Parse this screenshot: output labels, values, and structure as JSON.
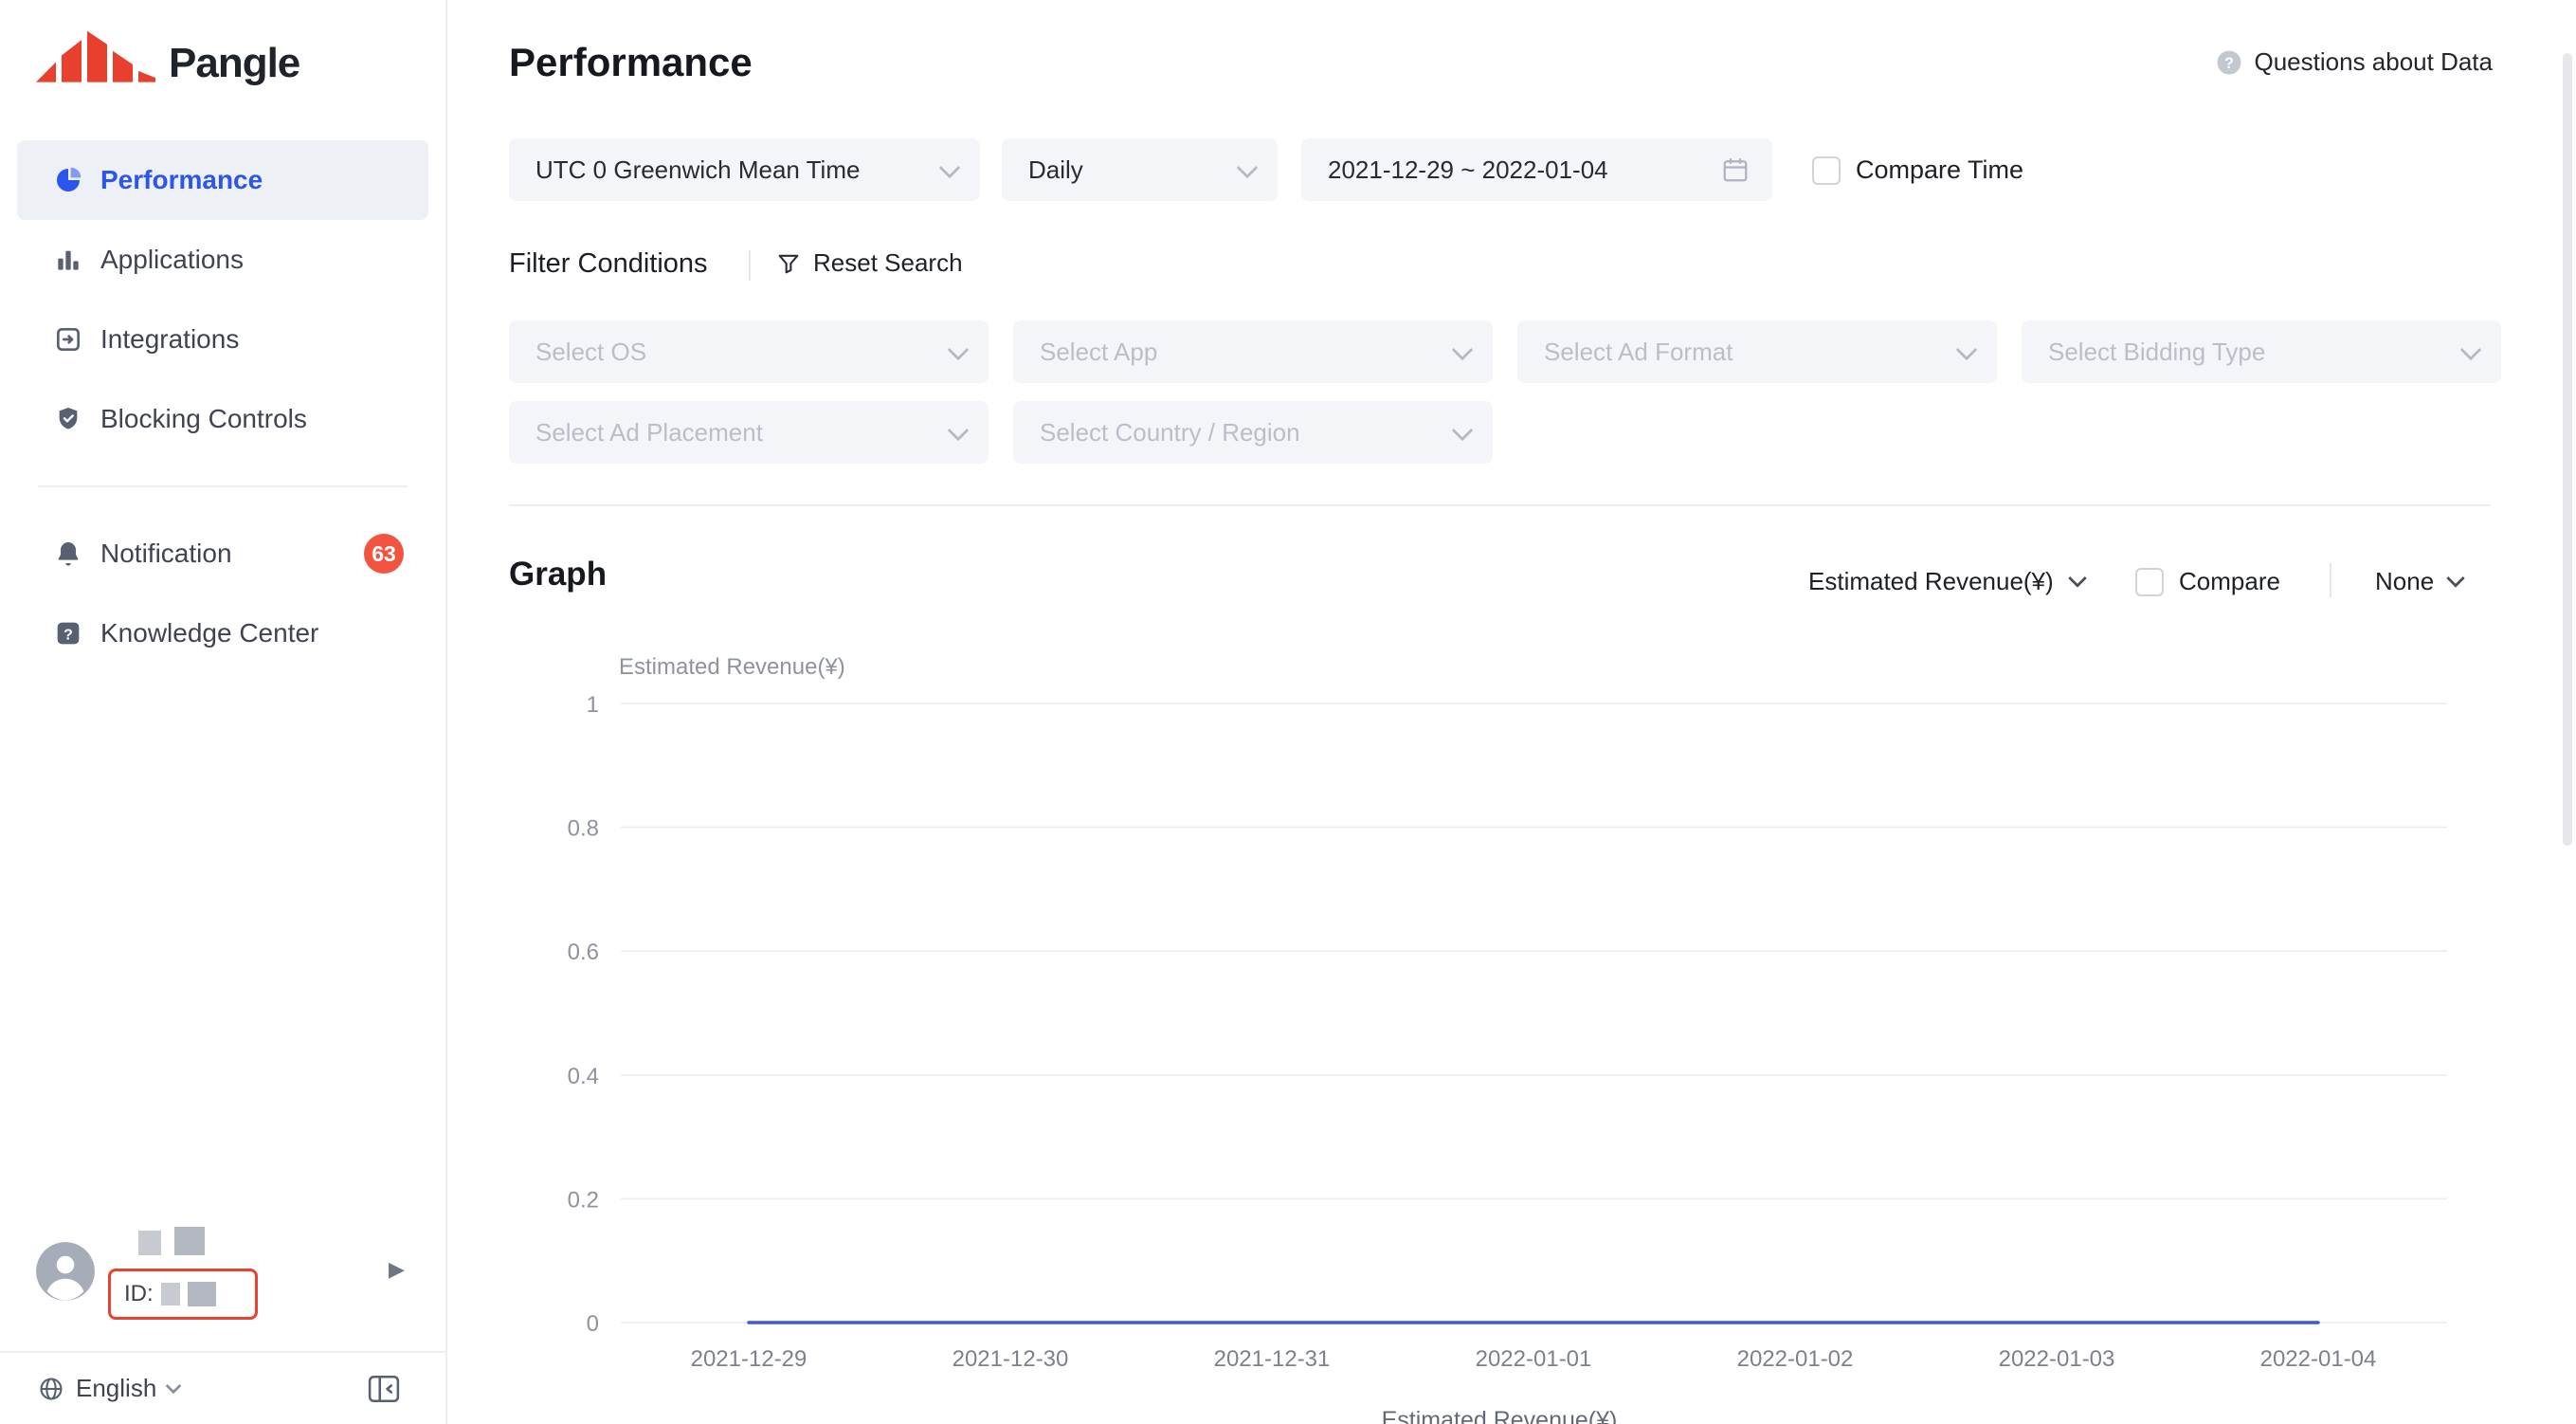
{
  "brand": {
    "name": "Pangle"
  },
  "sidebar": {
    "items": [
      {
        "label": "Performance",
        "active": true
      },
      {
        "label": "Applications"
      },
      {
        "label": "Integrations"
      },
      {
        "label": "Blocking Controls"
      },
      {
        "label": "Notification",
        "badge": "63"
      },
      {
        "label": "Knowledge Center"
      }
    ],
    "user": {
      "id_prefix": "ID:"
    },
    "footer": {
      "language": "English"
    }
  },
  "header": {
    "title": "Performance",
    "help": "Questions about Data"
  },
  "toolbar": {
    "timezone": "UTC 0 Greenwich Mean Time",
    "granularity": "Daily",
    "date_range": "2021-12-29 ~ 2022-01-04",
    "compare_time": "Compare Time"
  },
  "filters": {
    "title": "Filter Conditions",
    "reset": "Reset Search",
    "placeholders": [
      "Select OS",
      "Select App",
      "Select Ad Format",
      "Select Bidding Type",
      "Select Ad Placement",
      "Select Country / Region"
    ]
  },
  "graph": {
    "title": "Graph",
    "metric": "Estimated Revenue(¥)",
    "compare": "Compare",
    "breakdown": "None"
  },
  "colors": {
    "accent": "#2b55ec",
    "badge": "#f25440",
    "series_line": "#3a5bdd",
    "redaction_outline": "#e8432e"
  },
  "icons": {
    "performance": "pie-chart",
    "applications": "bar-chart",
    "integrations": "arrow-into-box",
    "blocking_controls": "shield",
    "notification": "bell",
    "knowledge_center": "question-square",
    "help": "question-circle",
    "calendar": "calendar",
    "reset": "funnel",
    "language": "globe",
    "collapse": "panel-collapse",
    "avatar": "person-circle"
  },
  "chart_data": {
    "type": "line",
    "title": "",
    "ylabel": "Estimated Revenue(¥)",
    "x": [
      "2021-12-29",
      "2021-12-30",
      "2021-12-31",
      "2022-01-01",
      "2022-01-02",
      "2022-01-03",
      "2022-01-04"
    ],
    "series": [
      {
        "name": "Estimated Revenue(¥)",
        "values": [
          0,
          0,
          0,
          0,
          0,
          0,
          0
        ],
        "color": "#3a5bdd"
      }
    ],
    "ylim": [
      0,
      1
    ],
    "yticks": [
      0,
      0.2,
      0.4,
      0.6,
      0.8,
      1
    ],
    "grid": true,
    "legend_position": "bottom"
  }
}
